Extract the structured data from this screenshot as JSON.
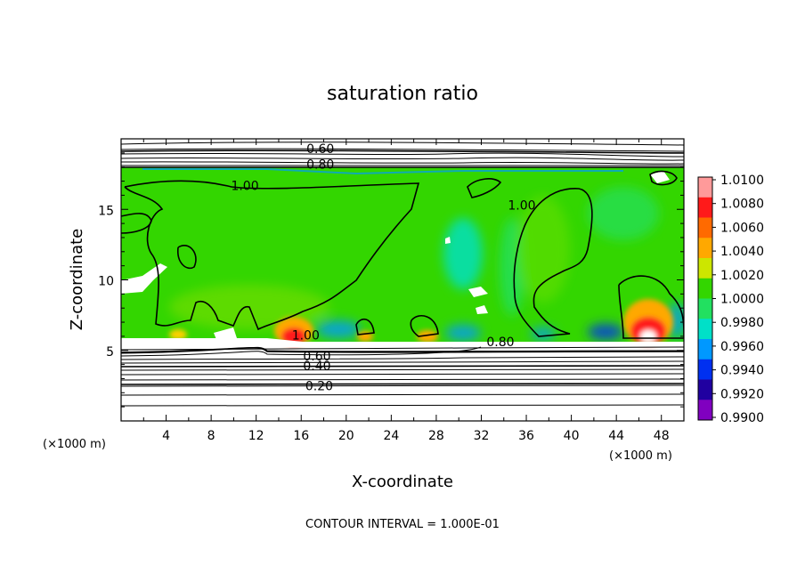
{
  "chart_data": {
    "type": "heatmap",
    "title": "saturation ratio",
    "xlabel": "X-coordinate",
    "ylabel": "Z-coordinate",
    "x_unit": "(×1000 m)",
    "z_unit": "(×1000 m)",
    "xlim": [
      0,
      50
    ],
    "ylim": [
      0,
      20
    ],
    "x_ticks": [
      4,
      8,
      12,
      16,
      20,
      24,
      28,
      32,
      36,
      40,
      44,
      48
    ],
    "y_ticks": [
      5,
      10,
      15
    ],
    "contour_interval_text": "CONTOUR INTERVAL = 1.000E-01",
    "colorbar": {
      "levels": [
        "1.0100",
        "1.0080",
        "1.0060",
        "1.0040",
        "1.0020",
        "1.0000",
        "0.9980",
        "0.9960",
        "0.9940",
        "0.9920",
        "0.9900"
      ],
      "colors": [
        "#ff9a9a",
        "#ff1a1a",
        "#ff6a00",
        "#ffa800",
        "#cce600",
        "#33d600",
        "#22e060",
        "#00e0c8",
        "#0098ff",
        "#0030f0",
        "#2000a0",
        "#8000c0"
      ]
    },
    "contour_labels": [
      {
        "text": "0.60",
        "x": 17.7,
        "z": 19.3
      },
      {
        "text": "0.80",
        "x": 17.7,
        "z": 18.2
      },
      {
        "text": "1.00",
        "x": 11.0,
        "z": 16.7
      },
      {
        "text": "1.00",
        "x": 35.6,
        "z": 15.3
      },
      {
        "text": "1.00",
        "x": 16.4,
        "z": 6.1
      },
      {
        "text": "0.80",
        "x": 33.7,
        "z": 5.6
      },
      {
        "text": "0.60",
        "x": 17.4,
        "z": 4.6
      },
      {
        "text": "0.40",
        "x": 17.4,
        "z": 3.9
      },
      {
        "text": "0.20",
        "x": 17.6,
        "z": 2.5
      }
    ]
  }
}
